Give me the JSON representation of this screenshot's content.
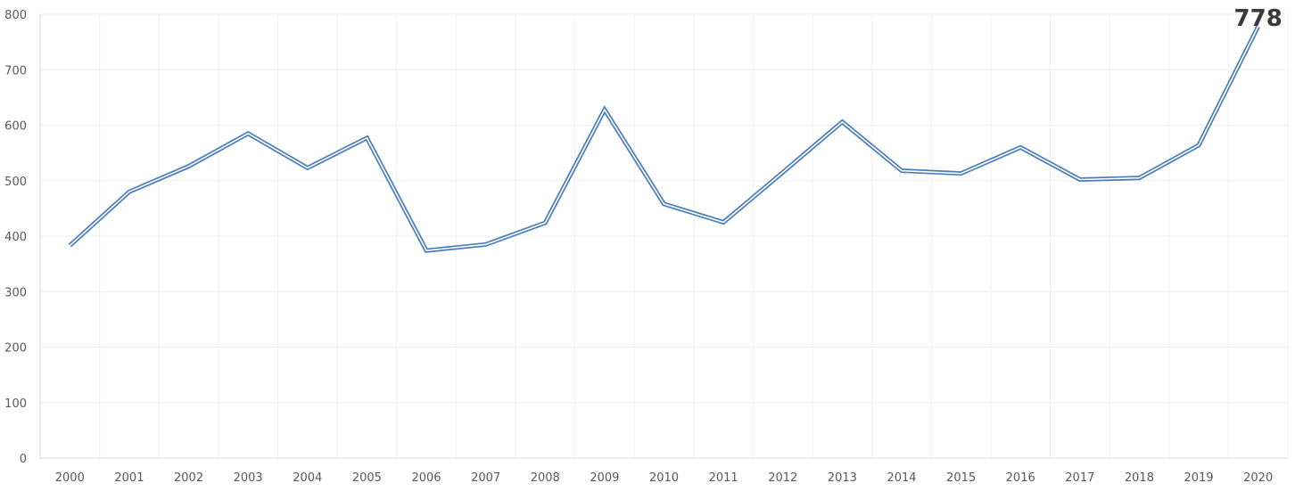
{
  "chart_data": {
    "type": "line",
    "title": "",
    "xlabel": "",
    "ylabel": "",
    "categories": [
      "2000",
      "2001",
      "2002",
      "2003",
      "2004",
      "2005",
      "2006",
      "2007",
      "2008",
      "2009",
      "2010",
      "2011",
      "2012",
      "2013",
      "2014",
      "2015",
      "2016",
      "2017",
      "2018",
      "2019",
      "2020"
    ],
    "series": [
      {
        "values": [
          383,
          480,
          526,
          585,
          523,
          577,
          374,
          385,
          424,
          628,
          458,
          425,
          515,
          606,
          518,
          513,
          560,
          502,
          505,
          564,
          778
        ],
        "color": "#4a7ebb"
      }
    ],
    "ylim": [
      0,
      800
    ],
    "yticks": [
      0,
      100,
      200,
      300,
      400,
      500,
      600,
      700,
      800
    ],
    "grid": true,
    "legend": "none",
    "annotations": [
      {
        "category": "2020",
        "text": "778"
      }
    ]
  }
}
